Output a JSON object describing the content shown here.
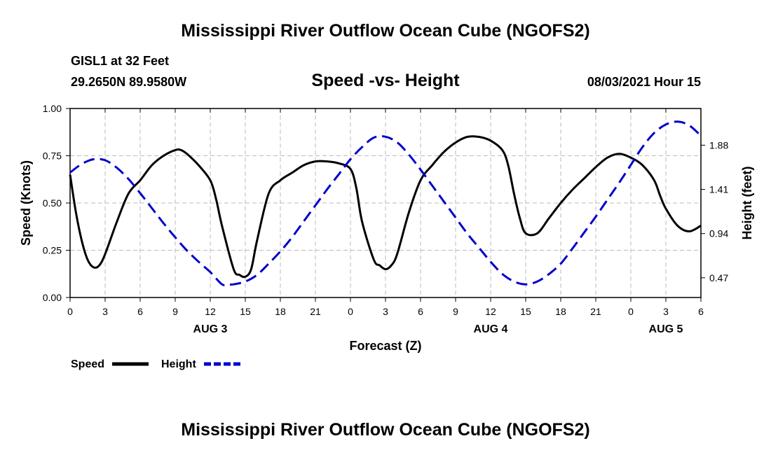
{
  "page": {
    "title_top": "Mississippi River Outflow Ocean Cube (NGOFS2)",
    "title_bottom": "Mississippi River Outflow Ocean Cube (NGOFS2)",
    "station": "GISL1 at 32 Feet",
    "coords": "29.2650N  89.9580W",
    "subtitle": "Speed -vs- Height",
    "datetime": "08/03/2021 Hour 15"
  },
  "chart_data": {
    "type": "line",
    "xlabel": "Forecast (Z)",
    "ylabel": "Speed (Knots)",
    "y2label": "Height (feet)",
    "xlim": [
      0,
      54
    ],
    "ylim": [
      0,
      1.0
    ],
    "y2lim": [
      0.26,
      2.27
    ],
    "x_ticks": [
      0,
      3,
      6,
      9,
      12,
      15,
      18,
      21,
      24,
      27,
      30,
      33,
      36,
      39,
      42,
      45,
      48,
      51,
      54
    ],
    "x_tick_labels": [
      "0",
      "3",
      "6",
      "9",
      "12",
      "15",
      "18",
      "21",
      "0",
      "3",
      "6",
      "9",
      "12",
      "15",
      "18",
      "21",
      "0",
      "3",
      "6"
    ],
    "y_ticks": [
      0.0,
      0.25,
      0.5,
      0.75,
      1.0
    ],
    "y_tick_labels": [
      "0.00",
      "0.25",
      "0.50",
      "0.75",
      "1.00"
    ],
    "y2_ticks": [
      0.47,
      0.94,
      1.41,
      1.88
    ],
    "y2_tick_labels": [
      "0.47",
      "0.94",
      "1.41",
      "1.88"
    ],
    "day_labels": [
      {
        "x": 12,
        "label": "AUG 3"
      },
      {
        "x": 36,
        "label": "AUG 4"
      },
      {
        "x": 51,
        "label": "AUG 5"
      }
    ],
    "grid": true,
    "legend": [
      "Speed",
      "Height"
    ],
    "colors": {
      "speed": "#000000",
      "height": "#0000cc",
      "grid": "#bbbbbb"
    },
    "series": [
      {
        "name": "Speed",
        "axis": "left",
        "style": "solid",
        "x": [
          0,
          0.5,
          1,
          1.5,
          2,
          2.5,
          3,
          4,
          5,
          6,
          7,
          8,
          9,
          9.5,
          10,
          11,
          12,
          12.5,
          13,
          14,
          14.5,
          15,
          15.5,
          16,
          17,
          18,
          19,
          20,
          21,
          22,
          23,
          24,
          24.5,
          25,
          26,
          26.5,
          27,
          27.5,
          28,
          29,
          30,
          31,
          32,
          33,
          34,
          35,
          36,
          37,
          37.5,
          38,
          38.5,
          39,
          40,
          41,
          42,
          43,
          44,
          45,
          46,
          47,
          48,
          49,
          50,
          50.5,
          51,
          52,
          53,
          54
        ],
        "values": [
          0.65,
          0.45,
          0.3,
          0.2,
          0.16,
          0.17,
          0.23,
          0.4,
          0.55,
          0.62,
          0.7,
          0.75,
          0.78,
          0.78,
          0.76,
          0.7,
          0.62,
          0.52,
          0.38,
          0.15,
          0.12,
          0.11,
          0.15,
          0.3,
          0.55,
          0.62,
          0.66,
          0.7,
          0.72,
          0.72,
          0.71,
          0.68,
          0.58,
          0.4,
          0.2,
          0.17,
          0.15,
          0.17,
          0.23,
          0.45,
          0.62,
          0.7,
          0.77,
          0.82,
          0.85,
          0.85,
          0.83,
          0.78,
          0.7,
          0.55,
          0.42,
          0.34,
          0.34,
          0.42,
          0.5,
          0.57,
          0.63,
          0.69,
          0.74,
          0.76,
          0.74,
          0.7,
          0.62,
          0.54,
          0.47,
          0.38,
          0.35,
          0.38
        ]
      },
      {
        "name": "Height",
        "axis": "right",
        "style": "dashed",
        "x": [
          0,
          1,
          2,
          3,
          4,
          5,
          6,
          7,
          8,
          9,
          10,
          11,
          12,
          13,
          13.5,
          14,
          15,
          16,
          17,
          18,
          19,
          20,
          21,
          22,
          23,
          24,
          25,
          26,
          27,
          28,
          29,
          30,
          31,
          32,
          33,
          34,
          35,
          36,
          37,
          38,
          39,
          40,
          41,
          42,
          43,
          44,
          45,
          46,
          47,
          48,
          49,
          50,
          51,
          52,
          53,
          54
        ],
        "values": [
          1.59,
          1.68,
          1.73,
          1.72,
          1.64,
          1.52,
          1.37,
          1.21,
          1.05,
          0.9,
          0.76,
          0.64,
          0.53,
          0.4,
          0.4,
          0.4,
          0.43,
          0.5,
          0.62,
          0.75,
          0.9,
          1.07,
          1.24,
          1.41,
          1.57,
          1.73,
          1.86,
          1.96,
          1.97,
          1.91,
          1.78,
          1.62,
          1.45,
          1.28,
          1.11,
          0.94,
          0.79,
          0.64,
          0.51,
          0.43,
          0.4,
          0.43,
          0.51,
          0.62,
          0.78,
          0.95,
          1.12,
          1.3,
          1.48,
          1.67,
          1.86,
          2.01,
          2.1,
          2.13,
          2.09,
          1.98
        ]
      }
    ]
  }
}
